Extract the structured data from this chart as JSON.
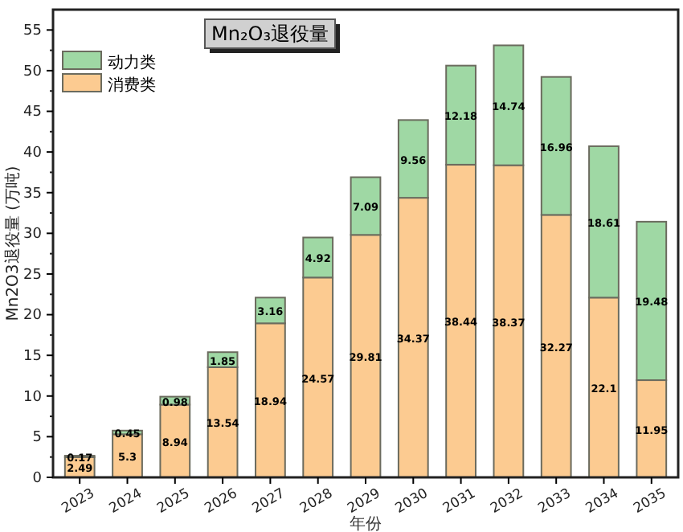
{
  "chart_data": {
    "type": "bar",
    "title": "Mn₂O₃退役量",
    "xlabel": "年份",
    "ylabel": "Mn2O3退役量 (万吨)",
    "categories": [
      "2023",
      "2024",
      "2025",
      "2026",
      "2027",
      "2028",
      "2029",
      "2030",
      "2031",
      "2032",
      "2033",
      "2034",
      "2035"
    ],
    "stacked": true,
    "data_labels": true,
    "legend": "top left",
    "grid": false,
    "series": [
      {
        "name": "消费类",
        "color": "#fccb91",
        "values": [
          2.49,
          5.3,
          8.94,
          13.54,
          18.94,
          24.57,
          29.81,
          34.37,
          38.44,
          38.37,
          32.27,
          22.1,
          11.95
        ]
      },
      {
        "name": "动力类",
        "color": "#9fd8a4",
        "values": [
          0.17,
          0.45,
          0.98,
          1.85,
          3.16,
          4.92,
          7.09,
          9.56,
          12.18,
          14.74,
          16.96,
          18.61,
          19.48
        ]
      }
    ],
    "ylim": [
      0,
      57.5
    ],
    "yticks": [
      0,
      5,
      10,
      15,
      20,
      25,
      30,
      35,
      40,
      45,
      50,
      55
    ]
  }
}
